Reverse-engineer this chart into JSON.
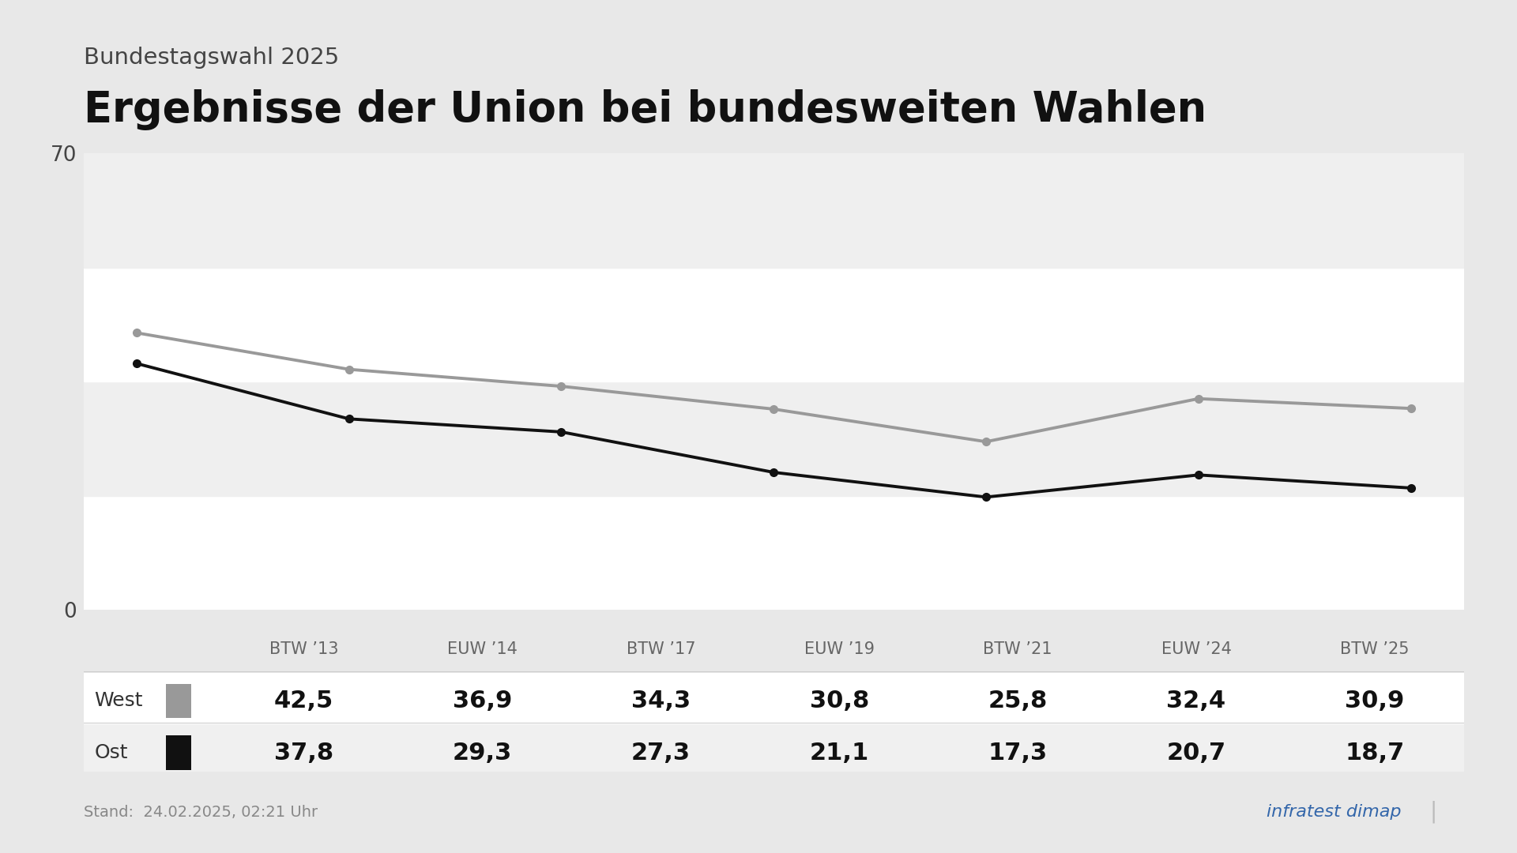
{
  "supertitle": "Bundestagswahl 2025",
  "title": "Ergebnisse der Union bei bundesweiten Wahlen",
  "categories": [
    "BTW ’13",
    "EUW ’14",
    "BTW ’17",
    "EUW ’19",
    "BTW ’21",
    "EUW ’24",
    "BTW ’25"
  ],
  "west_values": [
    42.5,
    36.9,
    34.3,
    30.8,
    25.8,
    32.4,
    30.9
  ],
  "ost_values": [
    37.8,
    29.3,
    27.3,
    21.1,
    17.3,
    20.7,
    18.7
  ],
  "west_color": "#999999",
  "ost_color": "#111111",
  "line_width": 2.8,
  "marker_size": 7,
  "ylim": [
    0,
    70
  ],
  "ytick_top": 70,
  "ytick_bottom": 0,
  "bg_color": "#e8e8e8",
  "plot_bg_color": "#ffffff",
  "band_colors": [
    "#ffffff",
    "#efefef",
    "#ffffff",
    "#efefef"
  ],
  "footer_text": "Stand:  24.02.2025, 02:21 Uhr",
  "footer_color": "#888888",
  "title_color": "#111111",
  "supertitle_color": "#444444",
  "table_header_color": "#666666",
  "table_value_color": "#111111",
  "table_label_color": "#333333",
  "infratest_color": "#3366aa",
  "separator_color": "#cccccc",
  "west_label": "West",
  "ost_label": "Ost",
  "infratest_text": "infratest dimap"
}
